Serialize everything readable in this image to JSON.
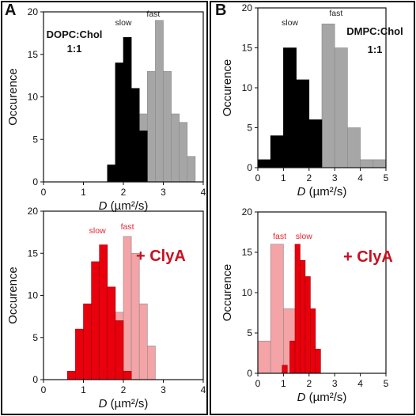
{
  "panel_labels": {
    "a": "A",
    "b": "B"
  },
  "colors": {
    "slow_top": "#000000",
    "fast_top": "#a6a6a6",
    "slow_bottom": "#e8000c",
    "fast_bottom": "#f4a3a6",
    "axis": "#111111",
    "red_text": "#c8101e"
  },
  "chart_data": [
    {
      "id": "A-top",
      "type": "bar",
      "title": "",
      "annotation": "DOPC:Chol\n1:1",
      "xlabel": "D (µm²/s)",
      "ylabel": "Occurence",
      "xlim": [
        0,
        4
      ],
      "ylim": [
        0,
        20
      ],
      "xticks": [
        "0",
        "1",
        "2",
        "3",
        "4"
      ],
      "yticks": [
        "0",
        "5",
        "10",
        "15",
        "20"
      ],
      "bin_width": 0.2,
      "series": [
        {
          "name": "slow",
          "x": [
            1.7,
            1.9,
            2.1,
            2.3,
            2.5
          ],
          "values": [
            2,
            14,
            17,
            11,
            6
          ]
        },
        {
          "name": "fast",
          "x": [
            2.3,
            2.5,
            2.7,
            2.9,
            3.1,
            3.3,
            3.5,
            3.7
          ],
          "values": [
            6,
            8,
            13,
            19,
            13,
            8,
            7,
            3
          ]
        }
      ]
    },
    {
      "id": "B-top",
      "type": "bar",
      "title": "",
      "annotation": "DMPC:Chol\n1:1",
      "xlabel": "D (µm²/s)",
      "ylabel": "Occurence",
      "xlim": [
        0,
        5
      ],
      "ylim": [
        0,
        20
      ],
      "xticks": [
        "0",
        "1",
        "2",
        "3",
        "4",
        "5"
      ],
      "yticks": [
        "0",
        "5",
        "10",
        "15",
        "20"
      ],
      "bin_width": 0.5,
      "series": [
        {
          "name": "slow",
          "x": [
            0.25,
            0.75,
            1.25,
            1.75,
            2.25
          ],
          "values": [
            1,
            4,
            15,
            11,
            6
          ]
        },
        {
          "name": "fast",
          "x": [
            1.25,
            2.25,
            2.75,
            3.25,
            3.75,
            4.25,
            4.75
          ],
          "values": [
            2,
            6,
            18,
            15,
            5,
            1,
            1
          ]
        }
      ]
    },
    {
      "id": "A-bottom",
      "type": "bar",
      "title": "",
      "annotation": "+ ClyA",
      "xlabel": "D (µm²/s)",
      "ylabel": "Occurence",
      "xlim": [
        0,
        4
      ],
      "ylim": [
        0,
        20
      ],
      "xticks": [
        "0",
        "1",
        "2",
        "3",
        "4"
      ],
      "yticks": [
        "0",
        "5",
        "10",
        "15",
        "20"
      ],
      "bin_width": 0.2,
      "series": [
        {
          "name": "slow",
          "x": [
            0.7,
            0.9,
            1.1,
            1.3,
            1.5,
            1.7,
            1.9,
            2.1
          ],
          "values": [
            1,
            6,
            9,
            14,
            16,
            11,
            7,
            1
          ]
        },
        {
          "name": "fast",
          "x": [
            1.7,
            1.9,
            2.1,
            2.3,
            2.5,
            2.7
          ],
          "values": [
            5,
            8,
            17,
            15,
            9,
            4
          ]
        }
      ]
    },
    {
      "id": "B-bottom",
      "type": "bar",
      "title": "",
      "annotation": "+ ClyA",
      "xlabel": "D (µm²/s)",
      "ylabel": "Occurence",
      "xlim": [
        0,
        5
      ],
      "ylim": [
        0,
        20
      ],
      "xticks": [
        "0",
        "1",
        "2",
        "3",
        "4",
        "5"
      ],
      "yticks": [
        "0",
        "5",
        "10",
        "15",
        "20"
      ],
      "bin_width": 0.5,
      "label_order": [
        "fast",
        "slow"
      ],
      "series": [
        {
          "name": "slow",
          "x": [
            1.05,
            1.35,
            1.55,
            1.75,
            1.95,
            2.15,
            2.35
          ],
          "values": [
            1,
            4,
            16,
            14,
            12,
            8,
            3
          ]
        },
        {
          "name": "fast",
          "x": [
            0.25,
            0.75,
            1.25
          ],
          "values": [
            4,
            16,
            8
          ]
        }
      ]
    }
  ]
}
